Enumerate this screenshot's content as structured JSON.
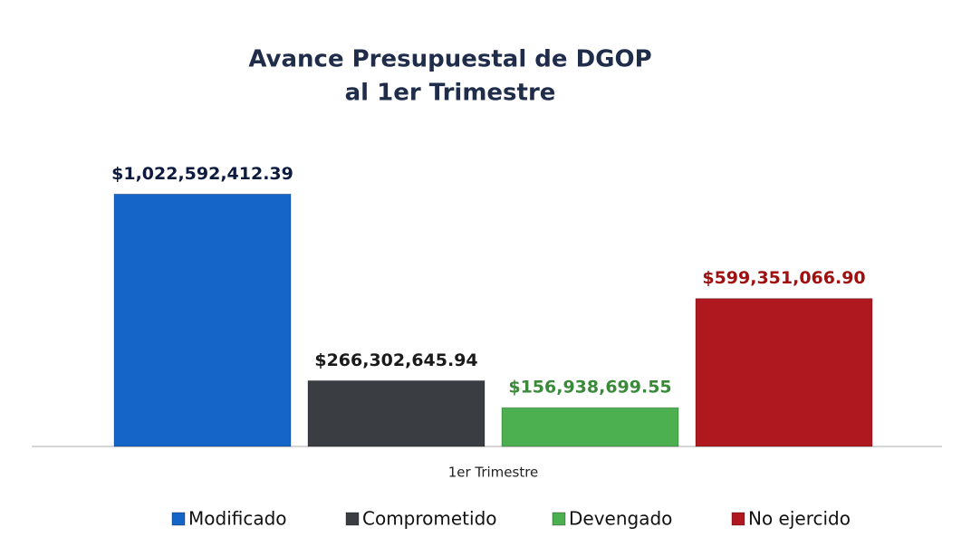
{
  "chart_data": {
    "type": "bar",
    "title": [
      "Avance Presupuestal de DGOP",
      "al 1er Trimestre"
    ],
    "categories": [
      "1er Trimestre"
    ],
    "series": [
      {
        "name": "Modificado",
        "color": "#1565c8",
        "label_color": "#0d1b3e",
        "values": [
          1022592412.39
        ],
        "value_labels": [
          "$1,022,592,412.39"
        ]
      },
      {
        "name": "Comprometido",
        "color": "#3a3d42",
        "label_color": "#1a1a1a",
        "values": [
          266302645.94
        ],
        "value_labels": [
          "$266,302,645.94"
        ]
      },
      {
        "name": "Devengado",
        "color": "#4caf50",
        "label_color": "#3a8a3a",
        "values": [
          156938699.55
        ],
        "value_labels": [
          "$156,938,699.55"
        ]
      },
      {
        "name": "No ejercido",
        "color": "#b01820",
        "label_color": "#a01010",
        "values": [
          599351066.9
        ],
        "value_labels": [
          "$599,351,066.90"
        ]
      }
    ],
    "ylim": [
      0,
      1200000000
    ],
    "legend": "bottom"
  }
}
